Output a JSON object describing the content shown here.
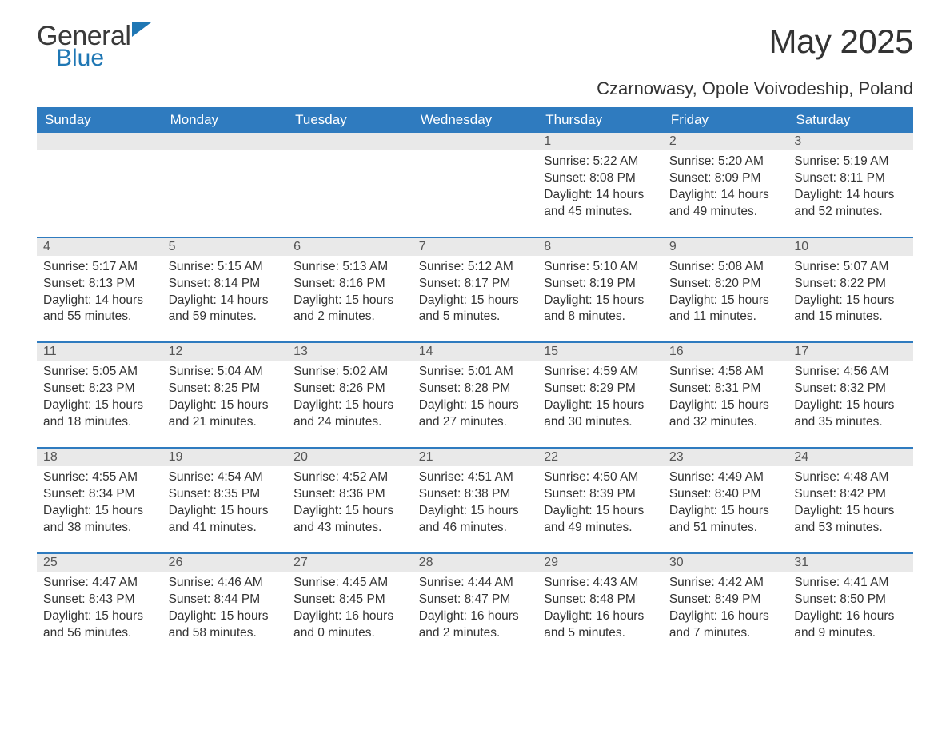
{
  "brand": {
    "word1": "General",
    "word2": "Blue"
  },
  "title": "May 2025",
  "location": "Czarnowasy, Opole Voivodeship, Poland",
  "colors": {
    "header_bg": "#2f7bbf",
    "header_text": "#ffffff",
    "daynum_bg": "#e9e9e9",
    "daynum_text": "#555555",
    "body_text": "#333333",
    "page_bg": "#ffffff",
    "accent": "#1f77b4"
  },
  "typography": {
    "month_title_size_pt": 32,
    "location_size_pt": 17,
    "header_size_pt": 13,
    "body_size_pt": 12,
    "font_family": "Arial"
  },
  "layout": {
    "columns": 7,
    "rows": 5,
    "first_weekday": "Sunday"
  },
  "labels": {
    "sunrise": "Sunrise:",
    "sunset": "Sunset:",
    "daylight": "Daylight:"
  },
  "weekdays": [
    "Sunday",
    "Monday",
    "Tuesday",
    "Wednesday",
    "Thursday",
    "Friday",
    "Saturday"
  ],
  "weeks": [
    [
      null,
      null,
      null,
      null,
      {
        "n": "1",
        "sr": "5:22 AM",
        "ss": "8:08 PM",
        "dl": "14 hours and 45 minutes."
      },
      {
        "n": "2",
        "sr": "5:20 AM",
        "ss": "8:09 PM",
        "dl": "14 hours and 49 minutes."
      },
      {
        "n": "3",
        "sr": "5:19 AM",
        "ss": "8:11 PM",
        "dl": "14 hours and 52 minutes."
      }
    ],
    [
      {
        "n": "4",
        "sr": "5:17 AM",
        "ss": "8:13 PM",
        "dl": "14 hours and 55 minutes."
      },
      {
        "n": "5",
        "sr": "5:15 AM",
        "ss": "8:14 PM",
        "dl": "14 hours and 59 minutes."
      },
      {
        "n": "6",
        "sr": "5:13 AM",
        "ss": "8:16 PM",
        "dl": "15 hours and 2 minutes."
      },
      {
        "n": "7",
        "sr": "5:12 AM",
        "ss": "8:17 PM",
        "dl": "15 hours and 5 minutes."
      },
      {
        "n": "8",
        "sr": "5:10 AM",
        "ss": "8:19 PM",
        "dl": "15 hours and 8 minutes."
      },
      {
        "n": "9",
        "sr": "5:08 AM",
        "ss": "8:20 PM",
        "dl": "15 hours and 11 minutes."
      },
      {
        "n": "10",
        "sr": "5:07 AM",
        "ss": "8:22 PM",
        "dl": "15 hours and 15 minutes."
      }
    ],
    [
      {
        "n": "11",
        "sr": "5:05 AM",
        "ss": "8:23 PM",
        "dl": "15 hours and 18 minutes."
      },
      {
        "n": "12",
        "sr": "5:04 AM",
        "ss": "8:25 PM",
        "dl": "15 hours and 21 minutes."
      },
      {
        "n": "13",
        "sr": "5:02 AM",
        "ss": "8:26 PM",
        "dl": "15 hours and 24 minutes."
      },
      {
        "n": "14",
        "sr": "5:01 AM",
        "ss": "8:28 PM",
        "dl": "15 hours and 27 minutes."
      },
      {
        "n": "15",
        "sr": "4:59 AM",
        "ss": "8:29 PM",
        "dl": "15 hours and 30 minutes."
      },
      {
        "n": "16",
        "sr": "4:58 AM",
        "ss": "8:31 PM",
        "dl": "15 hours and 32 minutes."
      },
      {
        "n": "17",
        "sr": "4:56 AM",
        "ss": "8:32 PM",
        "dl": "15 hours and 35 minutes."
      }
    ],
    [
      {
        "n": "18",
        "sr": "4:55 AM",
        "ss": "8:34 PM",
        "dl": "15 hours and 38 minutes."
      },
      {
        "n": "19",
        "sr": "4:54 AM",
        "ss": "8:35 PM",
        "dl": "15 hours and 41 minutes."
      },
      {
        "n": "20",
        "sr": "4:52 AM",
        "ss": "8:36 PM",
        "dl": "15 hours and 43 minutes."
      },
      {
        "n": "21",
        "sr": "4:51 AM",
        "ss": "8:38 PM",
        "dl": "15 hours and 46 minutes."
      },
      {
        "n": "22",
        "sr": "4:50 AM",
        "ss": "8:39 PM",
        "dl": "15 hours and 49 minutes."
      },
      {
        "n": "23",
        "sr": "4:49 AM",
        "ss": "8:40 PM",
        "dl": "15 hours and 51 minutes."
      },
      {
        "n": "24",
        "sr": "4:48 AM",
        "ss": "8:42 PM",
        "dl": "15 hours and 53 minutes."
      }
    ],
    [
      {
        "n": "25",
        "sr": "4:47 AM",
        "ss": "8:43 PM",
        "dl": "15 hours and 56 minutes."
      },
      {
        "n": "26",
        "sr": "4:46 AM",
        "ss": "8:44 PM",
        "dl": "15 hours and 58 minutes."
      },
      {
        "n": "27",
        "sr": "4:45 AM",
        "ss": "8:45 PM",
        "dl": "16 hours and 0 minutes."
      },
      {
        "n": "28",
        "sr": "4:44 AM",
        "ss": "8:47 PM",
        "dl": "16 hours and 2 minutes."
      },
      {
        "n": "29",
        "sr": "4:43 AM",
        "ss": "8:48 PM",
        "dl": "16 hours and 5 minutes."
      },
      {
        "n": "30",
        "sr": "4:42 AM",
        "ss": "8:49 PM",
        "dl": "16 hours and 7 minutes."
      },
      {
        "n": "31",
        "sr": "4:41 AM",
        "ss": "8:50 PM",
        "dl": "16 hours and 9 minutes."
      }
    ]
  ]
}
